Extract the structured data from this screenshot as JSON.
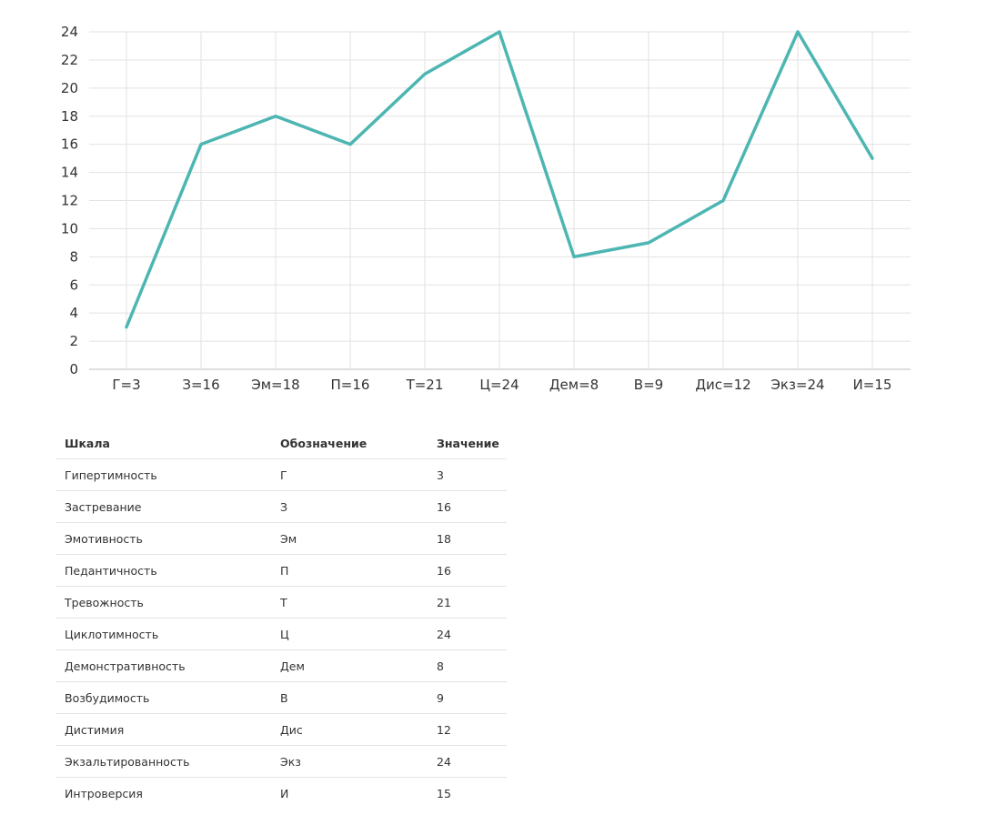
{
  "chart_data": {
    "type": "line",
    "categories": [
      "Г=3",
      "З=16",
      "Эм=18",
      "П=16",
      "Т=21",
      "Ц=24",
      "Дем=8",
      "В=9",
      "Дис=12",
      "Экз=24",
      "И=15"
    ],
    "series": [
      {
        "values": [
          3,
          16,
          18,
          16,
          21,
          24,
          8,
          9,
          12,
          24,
          15
        ]
      }
    ],
    "yticks": [
      0,
      2,
      4,
      6,
      8,
      10,
      12,
      14,
      16,
      18,
      20,
      22,
      24
    ],
    "ylim": [
      0,
      24
    ],
    "grid": true,
    "line_color": "#4db6b2",
    "title": "",
    "xlabel": "",
    "ylabel": ""
  },
  "table": {
    "headers": [
      "Шкала",
      "Обозначение",
      "Значение"
    ],
    "rows": [
      [
        "Гипертимность",
        "Г",
        "3"
      ],
      [
        "Застревание",
        "З",
        "16"
      ],
      [
        "Эмотивность",
        "Эм",
        "18"
      ],
      [
        "Педантичность",
        "П",
        "16"
      ],
      [
        "Тревожность",
        "Т",
        "21"
      ],
      [
        "Циклотимность",
        "Ц",
        "24"
      ],
      [
        "Демонстративность",
        "Дем",
        "8"
      ],
      [
        "Возбудимость",
        "В",
        "9"
      ],
      [
        "Дистимия",
        "Дис",
        "12"
      ],
      [
        "Экзальтированность",
        "Экз",
        "24"
      ],
      [
        "Интроверсия",
        "И",
        "15"
      ]
    ]
  }
}
